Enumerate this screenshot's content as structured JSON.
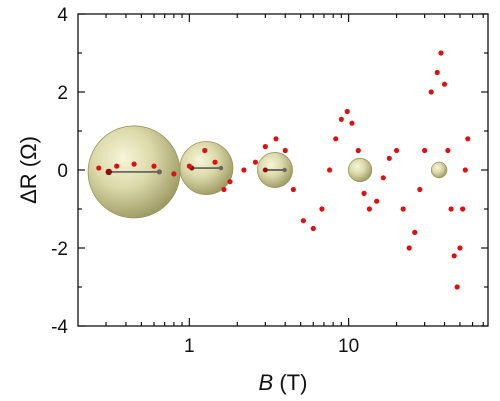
{
  "chart_data": {
    "type": "scatter",
    "title": "",
    "xlabel_var": "B",
    "xlabel_unit": "(T)",
    "ylabel_var": "ΔR",
    "ylabel_unit": "(Ω)",
    "xscale": "log",
    "xlim": [
      0.2,
      75
    ],
    "ylim": [
      -4,
      4
    ],
    "grid": false,
    "legend": "none",
    "x_ticks": [
      {
        "value": 1,
        "label": "1"
      },
      {
        "value": 10,
        "label": "10"
      }
    ],
    "y_ticks": [
      {
        "value": 4,
        "label": "4"
      },
      {
        "value": 2,
        "label": "2"
      },
      {
        "value": 0,
        "label": "0"
      },
      {
        "value": -2,
        "label": "-2"
      },
      {
        "value": -4,
        "label": "-4"
      }
    ],
    "series": [
      {
        "color": "#e01010",
        "x": [
          0.27,
          0.35,
          0.45,
          0.6,
          0.8,
          1.0,
          1.25,
          1.45,
          1.65,
          1.8,
          2.2,
          2.6,
          3.0,
          3.5,
          4.0,
          4.5,
          5.2,
          6.0,
          6.8,
          7.6,
          8.3,
          9.0,
          9.8,
          10.5,
          11.5,
          12.5,
          13.5,
          15.0,
          16.5,
          18.0,
          20.0,
          22.0,
          24.0,
          26.0,
          28.0,
          30.0,
          33.0,
          36.0,
          38.0,
          40.0,
          42.0,
          44.0,
          46.0,
          48.0,
          50.0,
          52.0,
          54.0,
          56.0
        ],
        "y": [
          0.05,
          0.1,
          0.15,
          0.1,
          -0.1,
          0.1,
          0.5,
          0.2,
          -0.5,
          -0.3,
          0.0,
          0.2,
          0.6,
          0.8,
          0.5,
          -0.5,
          -1.3,
          -1.5,
          -1.0,
          0.0,
          0.8,
          1.3,
          1.5,
          1.2,
          0.5,
          -0.6,
          -1.0,
          -0.8,
          -0.2,
          0.3,
          0.5,
          -1.0,
          -2.0,
          -1.6,
          -0.5,
          0.5,
          2.0,
          2.5,
          3.0,
          2.2,
          0.5,
          -1.0,
          -2.2,
          -3.0,
          -2.0,
          -1.0,
          0.0,
          0.8
        ]
      }
    ],
    "annotations": [
      {
        "type": "sphere",
        "x": 0.45,
        "y": -0.05,
        "r_y": 1.18
      },
      {
        "type": "sphere",
        "x": 1.28,
        "y": 0.05,
        "r_y": 0.68
      },
      {
        "type": "sphere",
        "x": 3.45,
        "y": 0.0,
        "r_y": 0.45
      },
      {
        "type": "sphere",
        "x": 11.8,
        "y": 0.0,
        "r_y": 0.3
      },
      {
        "type": "sphere",
        "x": 37.0,
        "y": 0.0,
        "r_y": 0.2
      }
    ]
  }
}
